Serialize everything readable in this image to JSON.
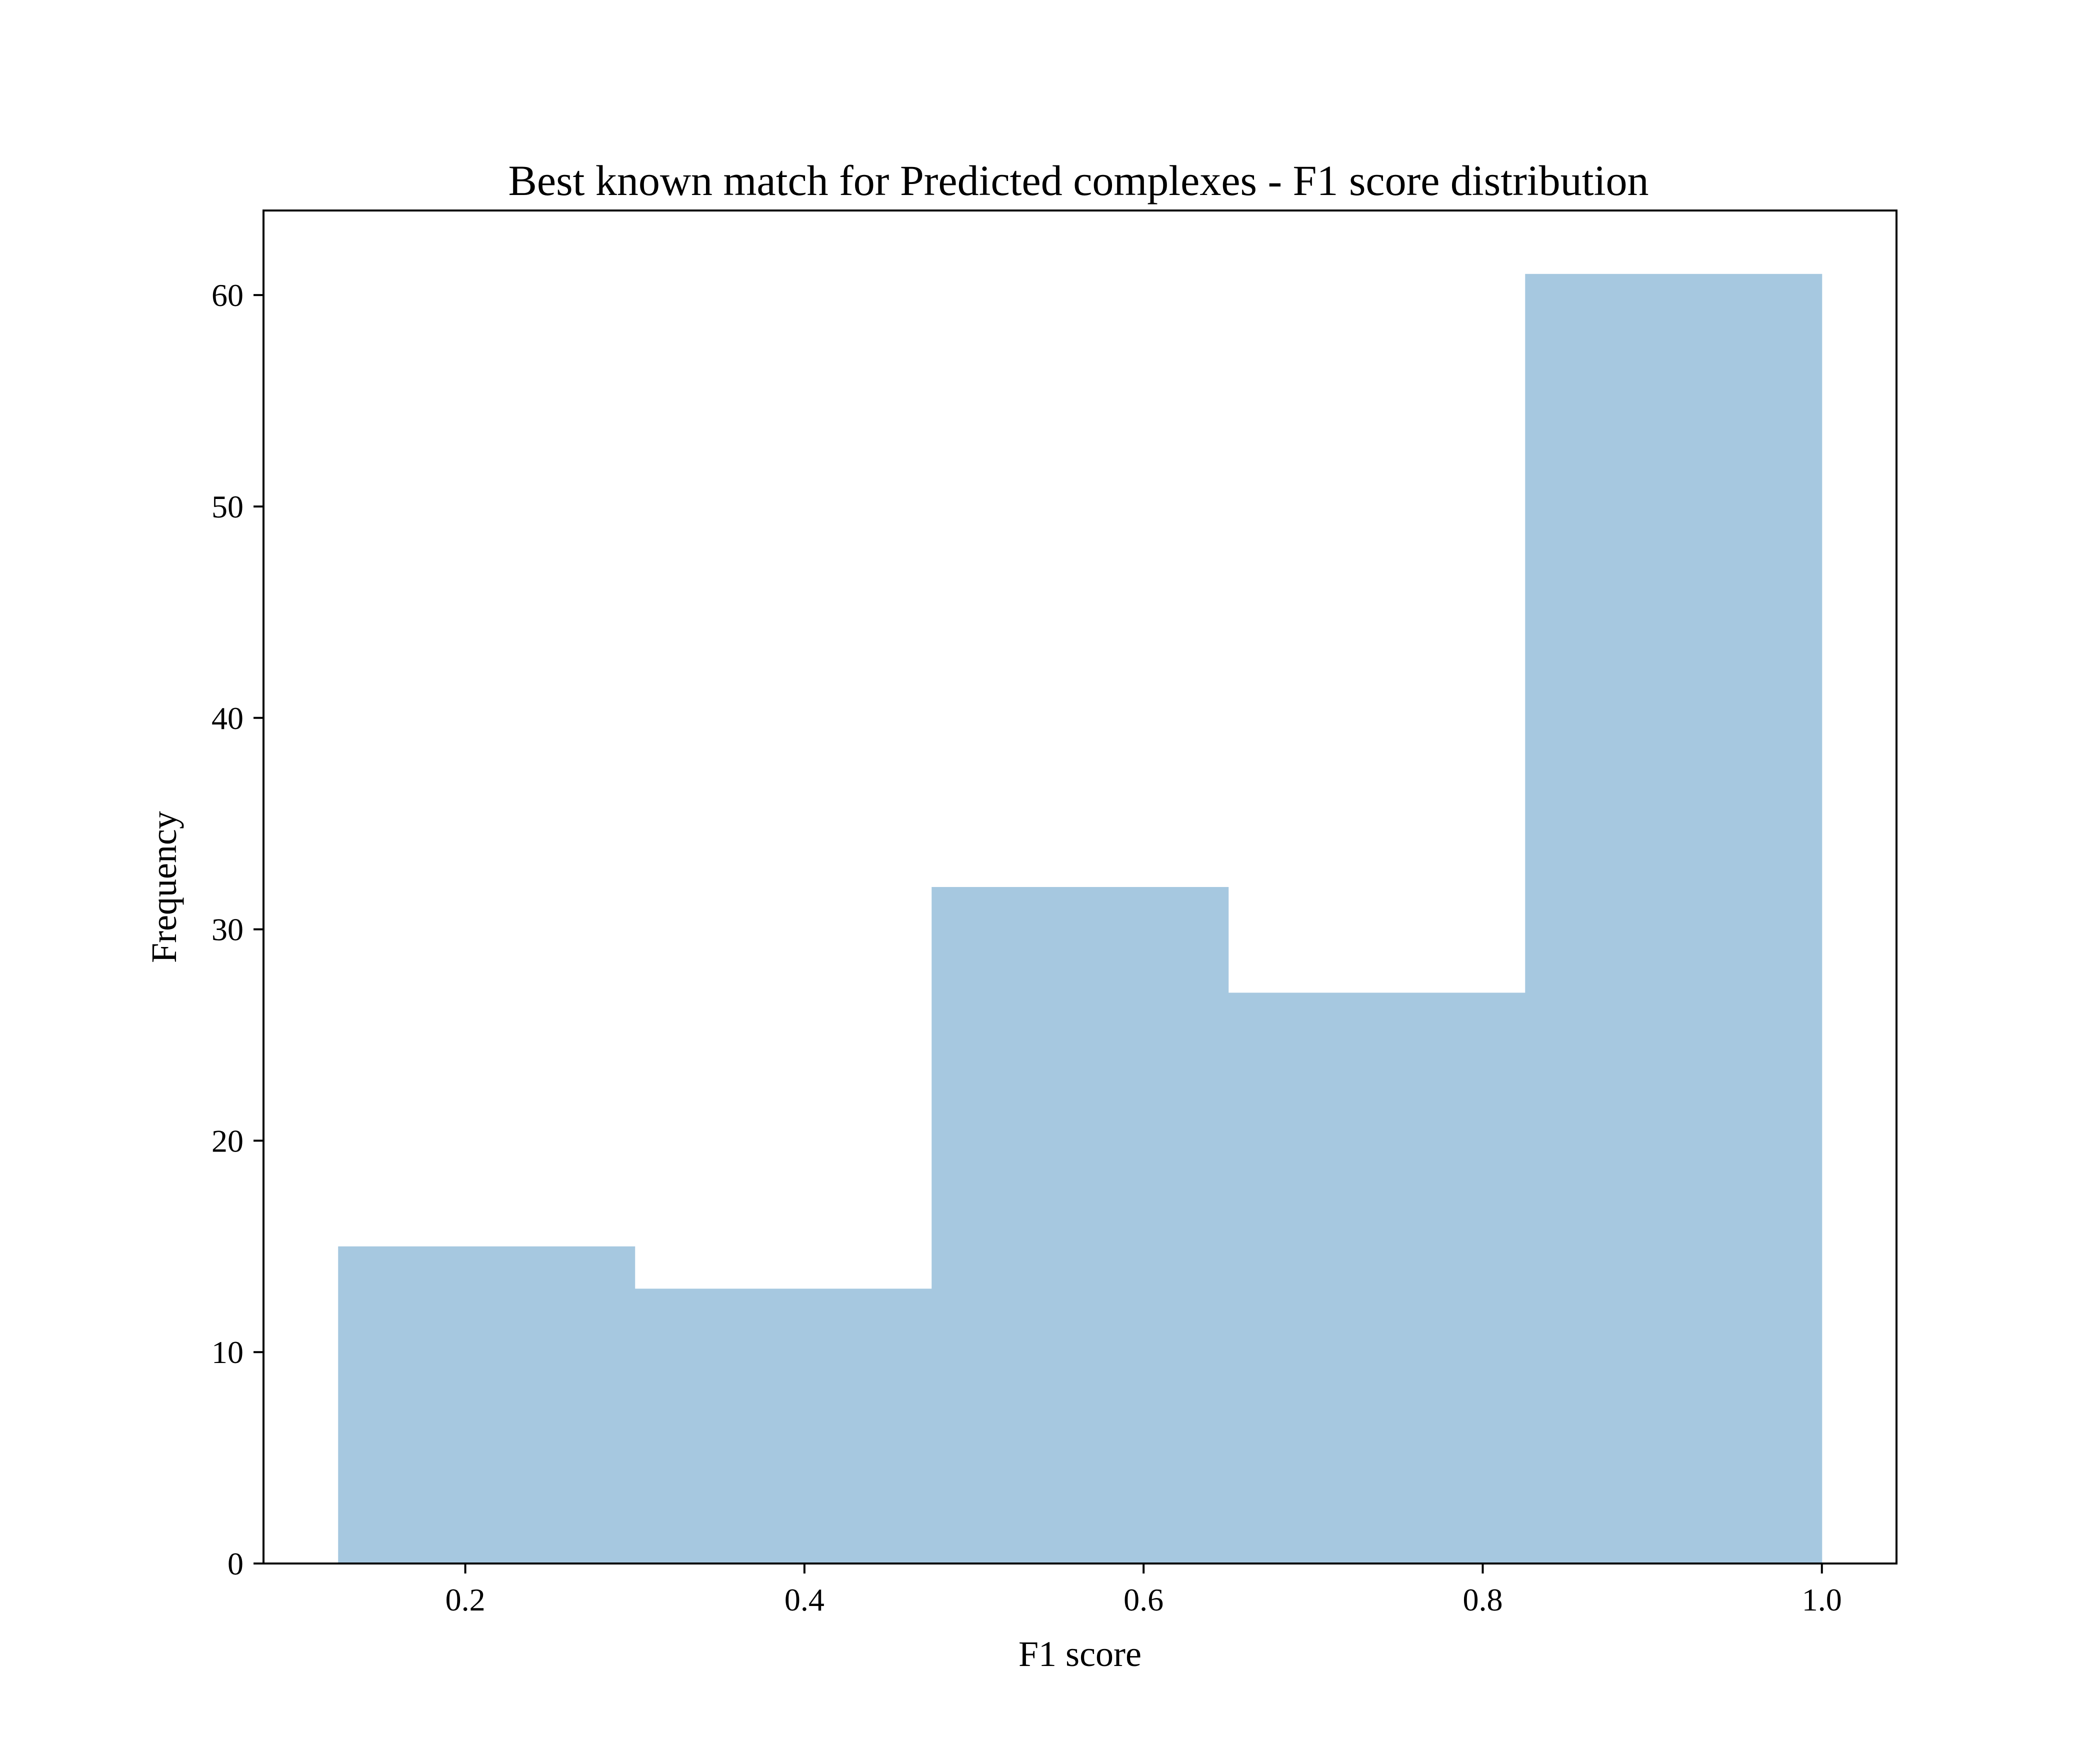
{
  "chart_data": {
    "type": "bar",
    "title": "Best known match for Predicted complexes - F1 score distribution",
    "xlabel": "F1 score",
    "ylabel": "Frequency",
    "bins": [
      {
        "start": 0.125,
        "end": 0.3,
        "count": 15
      },
      {
        "start": 0.3,
        "end": 0.475,
        "count": 13
      },
      {
        "start": 0.475,
        "end": 0.65,
        "count": 32
      },
      {
        "start": 0.65,
        "end": 0.825,
        "count": 27
      },
      {
        "start": 0.825,
        "end": 1.0,
        "count": 61
      }
    ],
    "xlim": [
      0.081,
      1.044
    ],
    "ylim": [
      0,
      64
    ],
    "x_ticks": [
      0.2,
      0.4,
      0.6,
      0.8,
      1.0
    ],
    "x_tick_labels": [
      "0.2",
      "0.4",
      "0.6",
      "0.8",
      "1.0"
    ],
    "y_ticks": [
      0,
      10,
      20,
      30,
      40,
      50,
      60
    ],
    "y_tick_labels": [
      "0",
      "10",
      "20",
      "30",
      "40",
      "50",
      "60"
    ],
    "grid": false,
    "bar_color": "#a6c8e0"
  }
}
